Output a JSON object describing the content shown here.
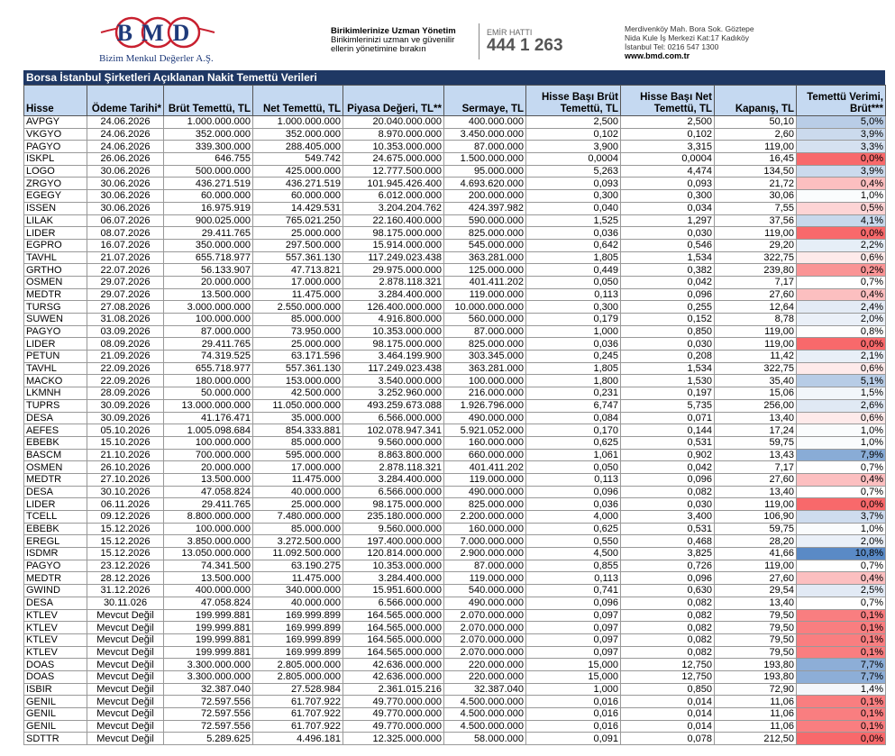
{
  "header": {
    "logo": "BMD",
    "company": "Bizim Menkul Değerler A.Ş.",
    "slogan_title": "Birikimlerinize Uzman Yönetim",
    "slogan_text": "Birikimlerinizi uzman ve güvenilir ellerin yönetimine bırakın",
    "hotline_label": "EMİR HATTI",
    "hotline": "444 1 263",
    "address_1": "Merdivenköy Mah. Bora Sok. Göztepe",
    "address_2": "Nida Kule İş Merkezi Kat:17 Kadıköy",
    "address_3": "İstanbul   Tel: 0216 547 1300",
    "web": "www.bmd.com.tr"
  },
  "table": {
    "title": "Borsa İstanbul Şirketleri Açıklanan Nakit Temettü Verileri",
    "yield_colors": {
      "low": "#f8696b",
      "mid": "#ffffff",
      "high": "#5a8ac6"
    },
    "columns": [
      "Hisse",
      "Ödeme Tarihi*",
      "Brüt Temettü, TL",
      "Net Temettü, TL",
      "Piyasa Değeri, TL**",
      "Sermaye, TL",
      "Hisse Başı Brüt Temettü, TL",
      "Hisse Başı Net Temettü, TL",
      "Kapanış, TL",
      "Temettü Verimi, Brüt***"
    ],
    "rows": [
      [
        "AVPGY",
        "24.06.2026",
        "1.000.000.000",
        "1.000.000.000",
        "20.040.000.000",
        "400.000.000",
        "2,500",
        "2,500",
        "50,10",
        "5,0%"
      ],
      [
        "VKGYO",
        "24.06.2026",
        "352.000.000",
        "352.000.000",
        "8.970.000.000",
        "3.450.000.000",
        "0,102",
        "0,102",
        "2,60",
        "3,9%"
      ],
      [
        "PAGYO",
        "24.06.2026",
        "339.300.000",
        "288.405.000",
        "10.353.000.000",
        "87.000.000",
        "3,900",
        "3,315",
        "119,00",
        "3,3%"
      ],
      [
        "ISKPL",
        "26.06.2026",
        "646.755",
        "549.742",
        "24.675.000.000",
        "1.500.000.000",
        "0,0004",
        "0,0004",
        "16,45",
        "0,0%"
      ],
      [
        "LOGO",
        "30.06.2026",
        "500.000.000",
        "425.000.000",
        "12.777.500.000",
        "95.000.000",
        "5,263",
        "4,474",
        "134,50",
        "3,9%"
      ],
      [
        "ZRGYO",
        "30.06.2026",
        "436.271.519",
        "436.271.519",
        "101.945.426.400",
        "4.693.620.000",
        "0,093",
        "0,093",
        "21,72",
        "0,4%"
      ],
      [
        "EGEGY",
        "30.06.2026",
        "60.000.000",
        "60.000.000",
        "6.012.000.000",
        "200.000.000",
        "0,300",
        "0,300",
        "30,06",
        "1,0%"
      ],
      [
        "ISSEN",
        "30.06.2026",
        "16.975.919",
        "14.429.531",
        "3.204.204.762",
        "424.397.982",
        "0,040",
        "0,034",
        "7,55",
        "0,5%"
      ],
      [
        "LILAK",
        "06.07.2026",
        "900.025.000",
        "765.021.250",
        "22.160.400.000",
        "590.000.000",
        "1,525",
        "1,297",
        "37,56",
        "4,1%"
      ],
      [
        "LIDER",
        "08.07.2026",
        "29.411.765",
        "25.000.000",
        "98.175.000.000",
        "825.000.000",
        "0,036",
        "0,030",
        "119,00",
        "0,0%"
      ],
      [
        "EGPRO",
        "16.07.2026",
        "350.000.000",
        "297.500.000",
        "15.914.000.000",
        "545.000.000",
        "0,642",
        "0,546",
        "29,20",
        "2,2%"
      ],
      [
        "TAVHL",
        "21.07.2026",
        "655.718.977",
        "557.361.130",
        "117.249.023.438",
        "363.281.000",
        "1,805",
        "1,534",
        "322,75",
        "0,6%"
      ],
      [
        "GRTHO",
        "22.07.2026",
        "56.133.907",
        "47.713.821",
        "29.975.000.000",
        "125.000.000",
        "0,449",
        "0,382",
        "239,80",
        "0,2%"
      ],
      [
        "OSMEN",
        "29.07.2026",
        "20.000.000",
        "17.000.000",
        "2.878.118.321",
        "401.411.202",
        "0,050",
        "0,042",
        "7,17",
        "0,7%"
      ],
      [
        "MEDTR",
        "29.07.2026",
        "13.500.000",
        "11.475.000",
        "3.284.400.000",
        "119.000.000",
        "0,113",
        "0,096",
        "27,60",
        "0,4%"
      ],
      [
        "TURSG",
        "27.08.2026",
        "3.000.000.000",
        "2.550.000.000",
        "126.400.000.000",
        "10.000.000.000",
        "0,300",
        "0,255",
        "12,64",
        "2,4%"
      ],
      [
        "SUWEN",
        "31.08.2026",
        "100.000.000",
        "85.000.000",
        "4.916.800.000",
        "560.000.000",
        "0,179",
        "0,152",
        "8,78",
        "2,0%"
      ],
      [
        "PAGYO",
        "03.09.2026",
        "87.000.000",
        "73.950.000",
        "10.353.000.000",
        "87.000.000",
        "1,000",
        "0,850",
        "119,00",
        "0,8%"
      ],
      [
        "LIDER",
        "08.09.2026",
        "29.411.765",
        "25.000.000",
        "98.175.000.000",
        "825.000.000",
        "0,036",
        "0,030",
        "119,00",
        "0,0%"
      ],
      [
        "PETUN",
        "21.09.2026",
        "74.319.525",
        "63.171.596",
        "3.464.199.900",
        "303.345.000",
        "0,245",
        "0,208",
        "11,42",
        "2,1%"
      ],
      [
        "TAVHL",
        "22.09.2026",
        "655.718.977",
        "557.361.130",
        "117.249.023.438",
        "363.281.000",
        "1,805",
        "1,534",
        "322,75",
        "0,6%"
      ],
      [
        "MACKO",
        "22.09.2026",
        "180.000.000",
        "153.000.000",
        "3.540.000.000",
        "100.000.000",
        "1,800",
        "1,530",
        "35,40",
        "5,1%"
      ],
      [
        "LKMNH",
        "28.09.2026",
        "50.000.000",
        "42.500.000",
        "3.252.960.000",
        "216.000.000",
        "0,231",
        "0,197",
        "15,06",
        "1,5%"
      ],
      [
        "TUPRS",
        "30.09.2026",
        "13.000.000.000",
        "11.050.000.000",
        "493.259.673.088",
        "1.926.796.000",
        "6,747",
        "5,735",
        "256,00",
        "2,6%"
      ],
      [
        "DESA",
        "30.09.2026",
        "41.176.471",
        "35.000.000",
        "6.566.000.000",
        "490.000.000",
        "0,084",
        "0,071",
        "13,40",
        "0,6%"
      ],
      [
        "AEFES",
        "05.10.2026",
        "1.005.098.684",
        "854.333.881",
        "102.078.947.341",
        "5.921.052.000",
        "0,170",
        "0,144",
        "17,24",
        "1,0%"
      ],
      [
        "EBEBK",
        "15.10.2026",
        "100.000.000",
        "85.000.000",
        "9.560.000.000",
        "160.000.000",
        "0,625",
        "0,531",
        "59,75",
        "1,0%"
      ],
      [
        "BASCM",
        "21.10.2026",
        "700.000.000",
        "595.000.000",
        "8.863.800.000",
        "660.000.000",
        "1,061",
        "0,902",
        "13,43",
        "7,9%"
      ],
      [
        "OSMEN",
        "26.10.2026",
        "20.000.000",
        "17.000.000",
        "2.878.118.321",
        "401.411.202",
        "0,050",
        "0,042",
        "7,17",
        "0,7%"
      ],
      [
        "MEDTR",
        "27.10.2026",
        "13.500.000",
        "11.475.000",
        "3.284.400.000",
        "119.000.000",
        "0,113",
        "0,096",
        "27,60",
        "0,4%"
      ],
      [
        "DESA",
        "30.10.2026",
        "47.058.824",
        "40.000.000",
        "6.566.000.000",
        "490.000.000",
        "0,096",
        "0,082",
        "13,40",
        "0,7%"
      ],
      [
        "LIDER",
        "06.11.2026",
        "29.411.765",
        "25.000.000",
        "98.175.000.000",
        "825.000.000",
        "0,036",
        "0,030",
        "119,00",
        "0,0%"
      ],
      [
        "TCELL",
        "09.12.2026",
        "8.800.000.000",
        "7.480.000.000",
        "235.180.000.000",
        "2.200.000.000",
        "4,000",
        "3,400",
        "106,90",
        "3,7%"
      ],
      [
        "EBEBK",
        "15.12.2026",
        "100.000.000",
        "85.000.000",
        "9.560.000.000",
        "160.000.000",
        "0,625",
        "0,531",
        "59,75",
        "1,0%"
      ],
      [
        "EREGL",
        "15.12.2026",
        "3.850.000.000",
        "3.272.500.000",
        "197.400.000.000",
        "7.000.000.000",
        "0,550",
        "0,468",
        "28,20",
        "2,0%"
      ],
      [
        "ISDMR",
        "15.12.2026",
        "13.050.000.000",
        "11.092.500.000",
        "120.814.000.000",
        "2.900.000.000",
        "4,500",
        "3,825",
        "41,66",
        "10,8%"
      ],
      [
        "PAGYO",
        "23.12.2026",
        "74.341.500",
        "63.190.275",
        "10.353.000.000",
        "87.000.000",
        "0,855",
        "0,726",
        "119,00",
        "0,7%"
      ],
      [
        "MEDTR",
        "28.12.2026",
        "13.500.000",
        "11.475.000",
        "3.284.400.000",
        "119.000.000",
        "0,113",
        "0,096",
        "27,60",
        "0,4%"
      ],
      [
        "GWIND",
        "31.12.2026",
        "400.000.000",
        "340.000.000",
        "15.951.600.000",
        "540.000.000",
        "0,741",
        "0,630",
        "29,54",
        "2,5%"
      ],
      [
        "DESA",
        "30.11.026",
        "47.058.824",
        "40.000.000",
        "6.566.000.000",
        "490.000.000",
        "0,096",
        "0,082",
        "13,40",
        "0,7%"
      ],
      [
        "KTLEV",
        "Mevcut Değil",
        "199.999.881",
        "169.999.899",
        "164.565.000.000",
        "2.070.000.000",
        "0,097",
        "0,082",
        "79,50",
        "0,1%"
      ],
      [
        "KTLEV",
        "Mevcut Değil",
        "199.999.881",
        "169.999.899",
        "164.565.000.000",
        "2.070.000.000",
        "0,097",
        "0,082",
        "79,50",
        "0,1%"
      ],
      [
        "KTLEV",
        "Mevcut Değil",
        "199.999.881",
        "169.999.899",
        "164.565.000.000",
        "2.070.000.000",
        "0,097",
        "0,082",
        "79,50",
        "0,1%"
      ],
      [
        "KTLEV",
        "Mevcut Değil",
        "199.999.881",
        "169.999.899",
        "164.565.000.000",
        "2.070.000.000",
        "0,097",
        "0,082",
        "79,50",
        "0,1%"
      ],
      [
        "DOAS",
        "Mevcut Değil",
        "3.300.000.000",
        "2.805.000.000",
        "42.636.000.000",
        "220.000.000",
        "15,000",
        "12,750",
        "193,80",
        "7,7%"
      ],
      [
        "DOAS",
        "Mevcut Değil",
        "3.300.000.000",
        "2.805.000.000",
        "42.636.000.000",
        "220.000.000",
        "15,000",
        "12,750",
        "193,80",
        "7,7%"
      ],
      [
        "ISBIR",
        "Mevcut Değil",
        "32.387.040",
        "27.528.984",
        "2.361.015.216",
        "32.387.040",
        "1,000",
        "0,850",
        "72,90",
        "1,4%"
      ],
      [
        "GENIL",
        "Mevcut Değil",
        "72.597.556",
        "61.707.922",
        "49.770.000.000",
        "4.500.000.000",
        "0,016",
        "0,014",
        "11,06",
        "0,1%"
      ],
      [
        "GENIL",
        "Mevcut Değil",
        "72.597.556",
        "61.707.922",
        "49.770.000.000",
        "4.500.000.000",
        "0,016",
        "0,014",
        "11,06",
        "0,1%"
      ],
      [
        "GENIL",
        "Mevcut Değil",
        "72.597.556",
        "61.707.922",
        "49.770.000.000",
        "4.500.000.000",
        "0,016",
        "0,014",
        "11,06",
        "0,1%"
      ],
      [
        "SDTTR",
        "Mevcut Değil",
        "5.289.625",
        "4.496.181",
        "12.325.000.000",
        "58.000.000",
        "0,091",
        "0,078",
        "212,50",
        "0,0%"
      ]
    ]
  }
}
